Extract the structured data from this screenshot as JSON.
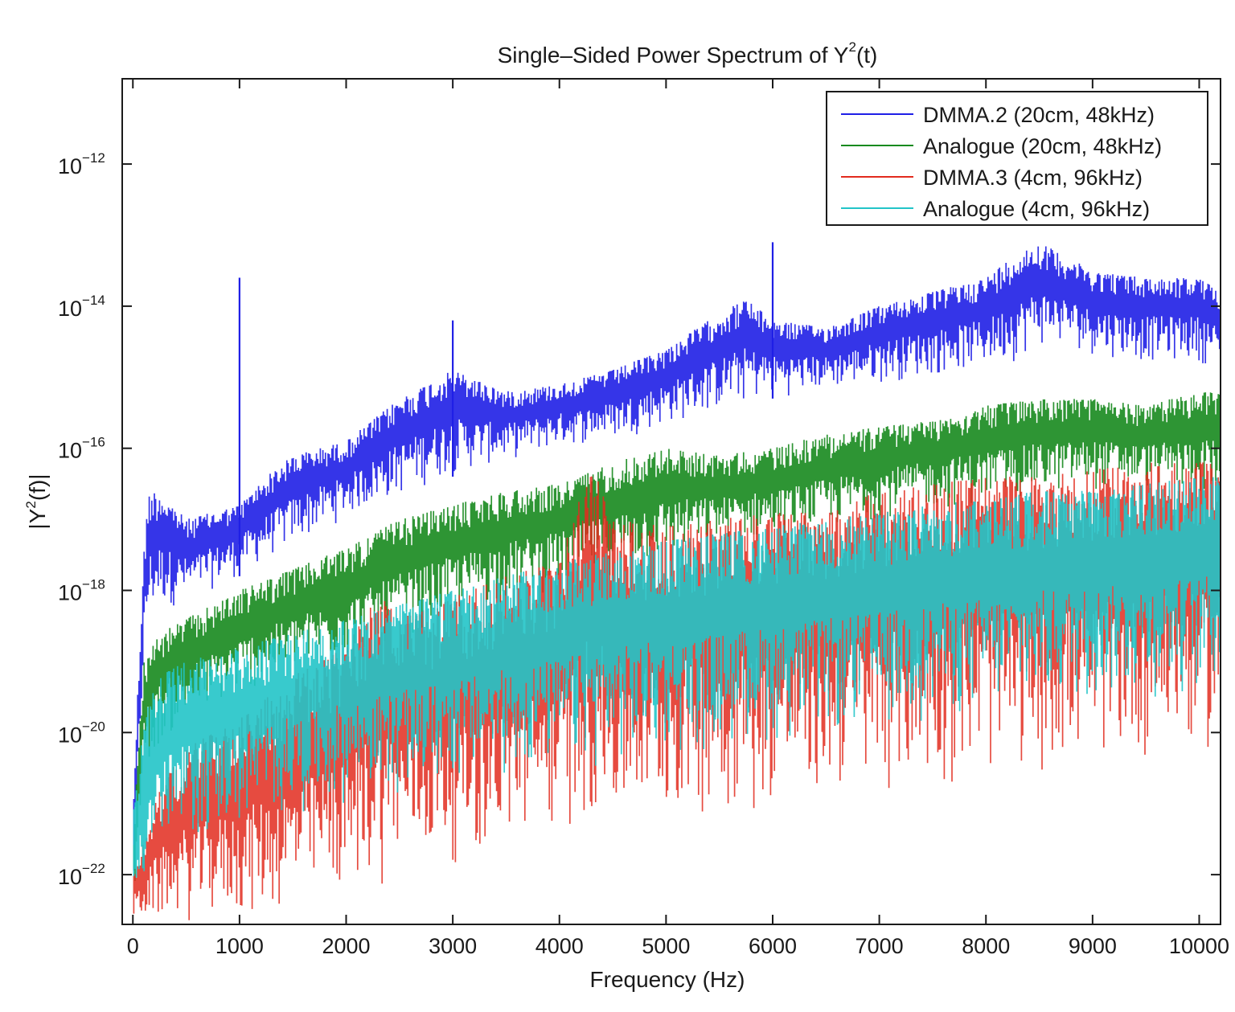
{
  "chart_data": {
    "type": "line",
    "title": "Single–Sided Power Spectrum of Y",
    "title_sup": "2",
    "title_suffix": "(t)",
    "xlabel": "Frequency (Hz)",
    "ylabel_prefix": "|Y",
    "ylabel_sup": "2",
    "ylabel_suffix": "(f)|",
    "y_scale": "log",
    "xlim": [
      -100,
      10200
    ],
    "ylim_log10": [
      -22.7,
      -10.8
    ],
    "x_ticks": [
      0,
      1000,
      2000,
      3000,
      4000,
      5000,
      6000,
      7000,
      8000,
      9000,
      10000
    ],
    "x_tick_labels": [
      "0",
      "1000",
      "2000",
      "3000",
      "4000",
      "5000",
      "6000",
      "7000",
      "8000",
      "9000",
      "10000"
    ],
    "y_ticks_log10": [
      -12,
      -14,
      -16,
      -18,
      -20,
      -22
    ],
    "y_tick_base": "10",
    "y_tick_exponents": [
      "−12",
      "−14",
      "−16",
      "−18",
      "−20",
      "−22"
    ],
    "grid": false,
    "legend_position": "top-right",
    "series": [
      {
        "name": "DMMA.2 (20cm, 48kHz)",
        "color": "#1f1fe6",
        "x": [
          0,
          100,
          150,
          250,
          500,
          750,
          1000,
          1250,
          1500,
          1750,
          2000,
          2500,
          3000,
          3500,
          4000,
          4500,
          5000,
          5500,
          5750,
          6000,
          6500,
          7000,
          7500,
          8000,
          8250,
          8500,
          8750,
          9000,
          9500,
          10000,
          10200
        ],
        "upper_log10": [
          -21.0,
          -17.5,
          -16.6,
          -16.6,
          -17.0,
          -16.9,
          -16.8,
          -16.4,
          -16.1,
          -16.0,
          -15.9,
          -15.3,
          -14.9,
          -15.2,
          -15.1,
          -14.9,
          -14.6,
          -14.1,
          -13.9,
          -14.2,
          -14.3,
          -14.0,
          -13.8,
          -13.6,
          -13.3,
          -13.1,
          -13.3,
          -13.5,
          -13.6,
          -13.6,
          -13.8
        ],
        "lower_log10": [
          -22.7,
          -19.2,
          -18.5,
          -18.3,
          -18.2,
          -18.0,
          -17.8,
          -17.6,
          -17.4,
          -17.2,
          -17.0,
          -16.7,
          -16.4,
          -16.2,
          -16.0,
          -15.9,
          -15.7,
          -15.5,
          -15.4,
          -15.3,
          -15.2,
          -15.1,
          -15.0,
          -14.9,
          -14.8,
          -14.6,
          -14.6,
          -14.7,
          -14.8,
          -14.8,
          -14.9
        ],
        "spikes": [
          {
            "x": 1000,
            "log10": -13.6
          },
          {
            "x": 3000,
            "log10": -14.2
          },
          {
            "x": 6000,
            "log10": -13.1
          }
        ]
      },
      {
        "name": "Analogue (20cm, 48kHz)",
        "color": "#178a1e",
        "x": [
          0,
          100,
          250,
          500,
          1000,
          1500,
          2000,
          2500,
          3000,
          3500,
          4000,
          4500,
          5000,
          5500,
          6000,
          6500,
          7000,
          7500,
          8000,
          8500,
          9000,
          9500,
          10000,
          10200
        ],
        "upper_log10": [
          -21.5,
          -19.0,
          -18.6,
          -18.4,
          -18.0,
          -17.7,
          -17.4,
          -17.0,
          -16.8,
          -16.6,
          -16.5,
          -16.2,
          -16.0,
          -16.1,
          -16.0,
          -15.8,
          -15.7,
          -15.6,
          -15.4,
          -15.3,
          -15.3,
          -15.4,
          -15.2,
          -15.2
        ],
        "lower_log10": [
          -22.7,
          -20.6,
          -20.2,
          -19.9,
          -19.5,
          -19.2,
          -19.0,
          -18.7,
          -18.4,
          -18.2,
          -18.0,
          -17.8,
          -17.6,
          -17.4,
          -17.3,
          -17.2,
          -17.0,
          -16.9,
          -16.8,
          -16.7,
          -16.6,
          -16.6,
          -16.7,
          -16.7
        ]
      },
      {
        "name": "DMMA.3 (4cm, 96kHz)",
        "color": "#e22b1e",
        "x": [
          0,
          250,
          500,
          1000,
          1500,
          2000,
          2300,
          2500,
          3000,
          3500,
          4000,
          4300,
          4500,
          5000,
          5500,
          6000,
          6500,
          7000,
          7500,
          8000,
          8500,
          9000,
          9500,
          10000,
          10200
        ],
        "upper_log10": [
          -22.0,
          -20.8,
          -20.2,
          -19.8,
          -19.2,
          -18.8,
          -18.0,
          -18.4,
          -18.1,
          -17.8,
          -17.6,
          -16.2,
          -17.0,
          -17.1,
          -17.0,
          -16.9,
          -16.9,
          -16.6,
          -16.5,
          -16.4,
          -16.4,
          -16.3,
          -16.2,
          -16.2,
          -16.1
        ],
        "lower_log10": [
          -22.7,
          -22.7,
          -22.7,
          -22.7,
          -22.6,
          -22.3,
          -22.2,
          -22.0,
          -21.9,
          -21.7,
          -21.5,
          -21.4,
          -21.5,
          -21.3,
          -21.2,
          -21.1,
          -21.0,
          -20.9,
          -20.8,
          -20.7,
          -20.6,
          -20.5,
          -20.4,
          -20.3,
          -20.3
        ]
      },
      {
        "name": "Analogue (4cm, 96kHz)",
        "color": "#22c4c8",
        "x": [
          0,
          100,
          250,
          500,
          1000,
          1500,
          2000,
          2500,
          3000,
          3500,
          4000,
          4500,
          5000,
          5500,
          6000,
          6500,
          7000,
          7500,
          8000,
          8500,
          9000,
          9500,
          10000,
          10200
        ],
        "upper_log10": [
          -21.2,
          -19.8,
          -19.2,
          -19.0,
          -18.8,
          -18.6,
          -18.4,
          -18.2,
          -18.0,
          -17.8,
          -17.6,
          -17.4,
          -17.3,
          -17.2,
          -17.1,
          -17.0,
          -16.9,
          -16.8,
          -16.7,
          -16.6,
          -16.6,
          -16.5,
          -16.4,
          -16.4
        ],
        "lower_log10": [
          -22.7,
          -22.2,
          -21.8,
          -21.6,
          -21.4,
          -21.2,
          -21.0,
          -20.9,
          -20.8,
          -20.7,
          -20.6,
          -20.5,
          -20.4,
          -20.3,
          -20.2,
          -20.1,
          -20.0,
          -19.9,
          -19.8,
          -19.7,
          -19.6,
          -19.6,
          -19.5,
          -19.5
        ]
      }
    ]
  }
}
